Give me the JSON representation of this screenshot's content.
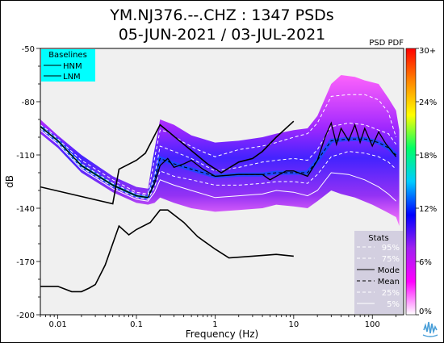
{
  "chart_data": {
    "type": "heatmap",
    "title_line1": "YM.NJ376.--.CHZ : 1347 PSDs",
    "title_line2": "05-JUN-2021 / 03-JUL-2021",
    "corner_label": "PSD PDF",
    "xlabel": "Frequency (Hz)",
    "ylabel": "dB",
    "x_scale": "log",
    "xlim": [
      0.006,
      250
    ],
    "ylim": [
      -200,
      -50
    ],
    "x_ticks": [
      {
        "v": 0.01,
        "label": "0.01"
      },
      {
        "v": 0.1,
        "label": "0.1"
      },
      {
        "v": 1,
        "label": "1"
      },
      {
        "v": 10,
        "label": "10"
      },
      {
        "v": 100,
        "label": "100"
      }
    ],
    "y_ticks": [
      {
        "v": -50,
        "label": "-50"
      },
      {
        "v": -80,
        "label": "-80"
      },
      {
        "v": -110,
        "label": "-110"
      },
      {
        "v": -140,
        "label": "-140"
      },
      {
        "v": -170,
        "label": "-170"
      },
      {
        "v": -200,
        "label": "-200"
      }
    ],
    "colorbar": {
      "ticks": [
        {
          "v": 0,
          "label": "0%"
        },
        {
          "v": 6,
          "label": "6%"
        },
        {
          "v": 12,
          "label": "12%"
        },
        {
          "v": 18,
          "label": "18%"
        },
        {
          "v": 24,
          "label": "24%"
        },
        {
          "v": 30,
          "label": "30+"
        }
      ],
      "colors": [
        "#ffffff",
        "#ff00ff",
        "#a020f0",
        "#0000ff",
        "#00ccff",
        "#00ff66",
        "#ffff00",
        "#ff8800",
        "#ff0000"
      ]
    },
    "baselines_legend": {
      "title": "Baselines",
      "entries": [
        "HNM",
        "LNM"
      ],
      "bg": "#00ffff"
    },
    "stats_legend": {
      "title": "Stats",
      "entries": [
        {
          "label": "95%",
          "color": "#ffffff",
          "dash": "4,3"
        },
        {
          "label": "75%",
          "color": "#ffffff",
          "dash": "4,3"
        },
        {
          "label": "Mode",
          "color": "#000000",
          "dash": ""
        },
        {
          "label": "Mean",
          "color": "#000000",
          "dash": "4,3"
        },
        {
          "label": "25%",
          "color": "#ffffff",
          "dash": "4,3"
        },
        {
          "label": "5%",
          "color": "#ffffff",
          "dash": ""
        }
      ],
      "bg": "#d3cfe0"
    },
    "hnm": [
      [
        0.006,
        -128
      ],
      [
        0.05,
        -137.5
      ],
      [
        0.06,
        -118
      ],
      [
        0.1,
        -113
      ],
      [
        0.13,
        -109
      ],
      [
        0.2,
        -93
      ],
      [
        0.8,
        -115
      ],
      [
        1.2,
        -120
      ],
      [
        2,
        -114
      ],
      [
        3,
        -112
      ],
      [
        4,
        -108
      ],
      [
        6,
        -100
      ],
      [
        10,
        -91
      ]
    ],
    "lnm": [
      [
        0.006,
        -184
      ],
      [
        0.01,
        -184
      ],
      [
        0.015,
        -187
      ],
      [
        0.02,
        -187
      ],
      [
        0.025,
        -185
      ],
      [
        0.03,
        -183
      ],
      [
        0.04,
        -172
      ],
      [
        0.06,
        -150
      ],
      [
        0.08,
        -155
      ],
      [
        0.1,
        -152
      ],
      [
        0.15,
        -148
      ],
      [
        0.2,
        -141
      ],
      [
        0.25,
        -141
      ],
      [
        0.4,
        -148
      ],
      [
        0.6,
        -156
      ],
      [
        1,
        -163
      ],
      [
        1.5,
        -168
      ],
      [
        3,
        -167
      ],
      [
        6,
        -166
      ],
      [
        10,
        -167
      ]
    ],
    "percentiles": {
      "p95": [
        [
          0.006,
          -93
        ],
        [
          0.008,
          -97
        ],
        [
          0.01,
          -101
        ],
        [
          0.02,
          -113
        ],
        [
          0.05,
          -124
        ],
        [
          0.1,
          -131
        ],
        [
          0.14,
          -132
        ],
        [
          0.16,
          -118
        ],
        [
          0.2,
          -96
        ],
        [
          0.25,
          -97
        ],
        [
          0.4,
          -103
        ],
        [
          0.6,
          -107
        ],
        [
          1,
          -111
        ],
        [
          2,
          -107
        ],
        [
          4,
          -105
        ],
        [
          6,
          -103
        ],
        [
          10,
          -100
        ],
        [
          15,
          -98
        ],
        [
          20,
          -92
        ],
        [
          30,
          -77
        ],
        [
          50,
          -76
        ],
        [
          80,
          -76
        ],
        [
          120,
          -79
        ],
        [
          160,
          -86
        ],
        [
          200,
          -100
        ]
      ],
      "p75": [
        [
          0.006,
          -94
        ],
        [
          0.008,
          -98
        ],
        [
          0.01,
          -102
        ],
        [
          0.02,
          -115
        ],
        [
          0.05,
          -126
        ],
        [
          0.1,
          -132
        ],
        [
          0.14,
          -133
        ],
        [
          0.17,
          -122
        ],
        [
          0.2,
          -105
        ],
        [
          0.3,
          -108
        ],
        [
          0.5,
          -112
        ],
        [
          1,
          -119
        ],
        [
          2,
          -117
        ],
        [
          4,
          -114
        ],
        [
          6,
          -113
        ],
        [
          10,
          -112
        ],
        [
          15,
          -113
        ],
        [
          20,
          -107
        ],
        [
          30,
          -94
        ],
        [
          50,
          -92
        ],
        [
          80,
          -93
        ],
        [
          120,
          -96
        ],
        [
          160,
          -98
        ],
        [
          200,
          -104
        ]
      ],
      "mode": [
        [
          0.006,
          -94
        ],
        [
          0.01,
          -102
        ],
        [
          0.02,
          -116
        ],
        [
          0.05,
          -127
        ],
        [
          0.1,
          -133
        ],
        [
          0.14,
          -134
        ],
        [
          0.17,
          -126
        ],
        [
          0.2,
          -116
        ],
        [
          0.25,
          -112
        ],
        [
          0.3,
          -117
        ],
        [
          0.4,
          -115
        ],
        [
          0.5,
          -113
        ],
        [
          0.7,
          -118
        ],
        [
          1,
          -122
        ],
        [
          2,
          -121
        ],
        [
          4,
          -121
        ],
        [
          5,
          -124
        ],
        [
          6,
          -122
        ],
        [
          8,
          -119
        ],
        [
          10,
          -119
        ],
        [
          15,
          -122
        ],
        [
          20,
          -113
        ],
        [
          25,
          -100
        ],
        [
          30,
          -92
        ],
        [
          35,
          -104
        ],
        [
          40,
          -95
        ],
        [
          50,
          -102
        ],
        [
          60,
          -93
        ],
        [
          70,
          -103
        ],
        [
          80,
          -95
        ],
        [
          100,
          -105
        ],
        [
          120,
          -97
        ],
        [
          150,
          -104
        ],
        [
          200,
          -111
        ]
      ],
      "mean": [
        [
          0.006,
          -94
        ],
        [
          0.01,
          -102
        ],
        [
          0.02,
          -116
        ],
        [
          0.05,
          -127
        ],
        [
          0.1,
          -133
        ],
        [
          0.14,
          -134
        ],
        [
          0.17,
          -124
        ],
        [
          0.2,
          -112
        ],
        [
          0.3,
          -115
        ],
        [
          0.5,
          -118
        ],
        [
          1,
          -122
        ],
        [
          2,
          -121
        ],
        [
          4,
          -121
        ],
        [
          6,
          -120
        ],
        [
          10,
          -120
        ],
        [
          15,
          -120
        ],
        [
          20,
          -113
        ],
        [
          30,
          -102
        ],
        [
          50,
          -101
        ],
        [
          80,
          -101
        ],
        [
          120,
          -103
        ],
        [
          160,
          -106
        ],
        [
          200,
          -110
        ]
      ],
      "p25": [
        [
          0.006,
          -95
        ],
        [
          0.01,
          -103
        ],
        [
          0.02,
          -117
        ],
        [
          0.05,
          -128
        ],
        [
          0.1,
          -134
        ],
        [
          0.14,
          -135
        ],
        [
          0.17,
          -128
        ],
        [
          0.2,
          -119
        ],
        [
          0.3,
          -122
        ],
        [
          0.5,
          -124
        ],
        [
          1,
          -127
        ],
        [
          2,
          -127
        ],
        [
          4,
          -126
        ],
        [
          6,
          -125
        ],
        [
          10,
          -125
        ],
        [
          15,
          -126
        ],
        [
          20,
          -121
        ],
        [
          30,
          -111
        ],
        [
          50,
          -108
        ],
        [
          80,
          -109
        ],
        [
          120,
          -111
        ],
        [
          160,
          -114
        ],
        [
          200,
          -118
        ]
      ],
      "p5": [
        [
          0.006,
          -96
        ],
        [
          0.01,
          -104
        ],
        [
          0.02,
          -118
        ],
        [
          0.05,
          -129
        ],
        [
          0.1,
          -135
        ],
        [
          0.14,
          -136
        ],
        [
          0.17,
          -131
        ],
        [
          0.2,
          -124
        ],
        [
          0.3,
          -127
        ],
        [
          0.5,
          -130
        ],
        [
          1,
          -134
        ],
        [
          2,
          -133
        ],
        [
          4,
          -132
        ],
        [
          6,
          -130
        ],
        [
          10,
          -131
        ],
        [
          15,
          -133
        ],
        [
          20,
          -130
        ],
        [
          30,
          -120
        ],
        [
          50,
          -121
        ],
        [
          80,
          -124
        ],
        [
          120,
          -128
        ],
        [
          160,
          -132
        ],
        [
          200,
          -136
        ]
      ]
    },
    "pdf_envelope": {
      "upper": [
        [
          0.006,
          -90
        ],
        [
          0.01,
          -99
        ],
        [
          0.02,
          -110
        ],
        [
          0.05,
          -122
        ],
        [
          0.1,
          -128
        ],
        [
          0.14,
          -129
        ],
        [
          0.16,
          -113
        ],
        [
          0.2,
          -90
        ],
        [
          0.3,
          -93
        ],
        [
          0.5,
          -99
        ],
        [
          1,
          -103
        ],
        [
          2,
          -102
        ],
        [
          4,
          -100
        ],
        [
          6,
          -98
        ],
        [
          10,
          -96
        ],
        [
          15,
          -95
        ],
        [
          20,
          -88
        ],
        [
          30,
          -70
        ],
        [
          40,
          -65
        ],
        [
          60,
          -66
        ],
        [
          80,
          -68
        ],
        [
          120,
          -70
        ],
        [
          160,
          -78
        ],
        [
          200,
          -85
        ],
        [
          220,
          -96
        ]
      ],
      "lower": [
        [
          220,
          -150
        ],
        [
          200,
          -145
        ],
        [
          150,
          -142
        ],
        [
          100,
          -138
        ],
        [
          60,
          -134
        ],
        [
          40,
          -132
        ],
        [
          30,
          -130
        ],
        [
          20,
          -136
        ],
        [
          15,
          -140
        ],
        [
          10,
          -139
        ],
        [
          6,
          -138
        ],
        [
          4,
          -140
        ],
        [
          2,
          -141
        ],
        [
          1,
          -142
        ],
        [
          0.5,
          -140
        ],
        [
          0.3,
          -137
        ],
        [
          0.2,
          -134
        ],
        [
          0.17,
          -137
        ],
        [
          0.14,
          -138
        ],
        [
          0.1,
          -137
        ],
        [
          0.05,
          -131
        ],
        [
          0.02,
          -120
        ],
        [
          0.01,
          -106
        ],
        [
          0.006,
          -98
        ]
      ]
    },
    "grid": false
  }
}
